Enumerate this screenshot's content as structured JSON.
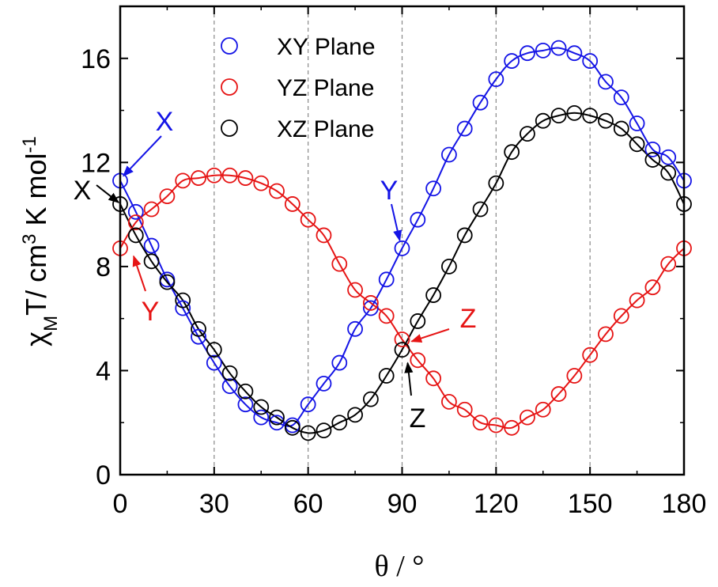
{
  "chart_data": {
    "type": "scatter",
    "xlabel": "θ / °",
    "ylabel_parts": {
      "chi": "χ",
      "chi_sub": "M",
      "main": "T/ cm",
      "exp3": "3",
      "unit": " K mol",
      "expm1": "-1"
    },
    "xlim": [
      0,
      180
    ],
    "ylim": [
      0,
      18
    ],
    "x_ticks": [
      0,
      30,
      60,
      90,
      120,
      150,
      180
    ],
    "y_ticks": [
      0,
      4,
      8,
      12,
      16
    ],
    "vertical_gridlines": [
      30,
      60,
      90,
      120,
      150
    ],
    "legend_position": "top-center",
    "series": [
      {
        "name": "XY Plane",
        "color": "#1414e6",
        "marker": "open-circle",
        "x": [
          0,
          5,
          10,
          15,
          20,
          25,
          30,
          35,
          40,
          45,
          50,
          55,
          60,
          65,
          70,
          75,
          80,
          85,
          90,
          95,
          100,
          105,
          110,
          115,
          120,
          125,
          130,
          135,
          140,
          145,
          150,
          155,
          160,
          165,
          170,
          175,
          180
        ],
        "y": [
          11.3,
          10.1,
          8.8,
          7.5,
          6.4,
          5.3,
          4.3,
          3.4,
          2.7,
          2.2,
          2.0,
          1.9,
          2.7,
          3.5,
          4.3,
          5.6,
          6.4,
          7.5,
          8.7,
          9.8,
          11.0,
          12.3,
          13.3,
          14.3,
          15.2,
          15.9,
          16.2,
          16.3,
          16.4,
          16.2,
          15.9,
          15.1,
          14.5,
          13.5,
          12.5,
          12.2,
          11.3
        ],
        "fit_curve": true
      },
      {
        "name": "YZ Plane",
        "color": "#e61414",
        "marker": "open-circle",
        "x": [
          0,
          5,
          10,
          15,
          20,
          25,
          30,
          35,
          40,
          45,
          50,
          55,
          60,
          65,
          70,
          75,
          80,
          85,
          90,
          95,
          100,
          105,
          110,
          115,
          120,
          125,
          130,
          135,
          140,
          145,
          150,
          155,
          160,
          165,
          170,
          175,
          180
        ],
        "y": [
          8.7,
          9.7,
          10.2,
          10.7,
          11.3,
          11.4,
          11.5,
          11.5,
          11.4,
          11.2,
          10.9,
          10.4,
          9.8,
          9.2,
          8.1,
          7.1,
          6.6,
          6.1,
          5.2,
          4.4,
          3.7,
          2.8,
          2.5,
          2.0,
          1.9,
          1.8,
          2.2,
          2.5,
          3.1,
          3.8,
          4.6,
          5.4,
          6.1,
          6.7,
          7.2,
          8.1,
          8.7
        ],
        "fit_curve": true
      },
      {
        "name": "XZ Plane",
        "color": "#000000",
        "marker": "open-circle",
        "x": [
          0,
          5,
          10,
          15,
          20,
          25,
          30,
          35,
          40,
          45,
          50,
          55,
          60,
          65,
          70,
          75,
          80,
          85,
          90,
          95,
          100,
          105,
          110,
          115,
          120,
          125,
          130,
          135,
          140,
          145,
          150,
          155,
          160,
          165,
          170,
          175,
          180
        ],
        "y": [
          10.4,
          9.2,
          8.2,
          7.4,
          6.7,
          5.6,
          4.8,
          3.9,
          3.2,
          2.6,
          2.2,
          1.8,
          1.6,
          1.7,
          2.0,
          2.3,
          2.9,
          3.8,
          4.8,
          5.9,
          6.9,
          8.0,
          9.2,
          10.2,
          11.2,
          12.4,
          13.1,
          13.6,
          13.8,
          13.9,
          13.8,
          13.6,
          13.3,
          12.7,
          12.1,
          11.6,
          10.4
        ],
        "fit_curve": true
      }
    ],
    "annotations": [
      {
        "text": "X",
        "color": "#1414e6",
        "points_to": [
          0,
          11.3
        ]
      },
      {
        "text": "X",
        "color": "#000000",
        "points_to": [
          0,
          10.4
        ]
      },
      {
        "text": "Y",
        "color": "#e61414",
        "points_to": [
          0,
          8.7
        ]
      },
      {
        "text": "Y",
        "color": "#1414e6",
        "points_to": [
          90,
          8.7
        ]
      },
      {
        "text": "Z",
        "color": "#e61414",
        "points_to": [
          90,
          5.0
        ]
      },
      {
        "text": "Z",
        "color": "#000000",
        "points_to": [
          90,
          4.6
        ]
      }
    ]
  }
}
